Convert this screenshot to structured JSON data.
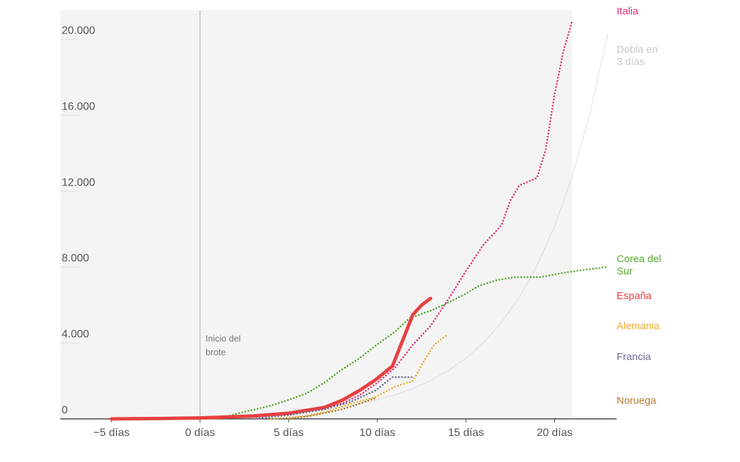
{
  "chart_data": {
    "type": "line",
    "annotation": "Inicio del brote",
    "xlim": [
      -8,
      23.5
    ],
    "ylim": [
      0,
      21500
    ],
    "xticks": [
      {
        "value": -5,
        "label": "−5 días"
      },
      {
        "value": 0,
        "label": "0 días"
      },
      {
        "value": 5,
        "label": "5 días"
      },
      {
        "value": 10,
        "label": "10 días"
      },
      {
        "value": 15,
        "label": "15 días"
      },
      {
        "value": 20,
        "label": "20 días"
      }
    ],
    "yticks": [
      0,
      {
        "value": 4000,
        "label": "4.000"
      },
      {
        "value": 8000,
        "label": "8.000"
      },
      {
        "value": 12000,
        "label": "12.000"
      },
      {
        "value": 16000,
        "label": "16.000"
      },
      {
        "value": 20000,
        "label": "20.000"
      }
    ],
    "grid": true,
    "series": [
      {
        "name": "Italia",
        "color": "#e0307a",
        "style": "dotted",
        "x": [
          0,
          3,
          6,
          8,
          9,
          10,
          11,
          12,
          13,
          14,
          15,
          16,
          17,
          17.5,
          18,
          19,
          19.5,
          20,
          20.5,
          21
        ],
        "values": [
          0,
          100,
          400,
          800,
          1250,
          1900,
          2700,
          3900,
          4900,
          6300,
          7800,
          9200,
          10200,
          11500,
          12300,
          12700,
          14200,
          17100,
          19400,
          21000
        ]
      },
      {
        "name": "Dobla en 3 días",
        "color": "#c8c8c8",
        "style": "thin",
        "x": [
          0,
          1,
          2,
          3,
          4,
          5,
          6,
          7,
          8,
          9,
          10,
          11,
          12,
          13,
          14,
          15,
          16,
          17,
          18,
          19,
          20,
          21,
          22,
          23
        ],
        "values": [
          100,
          126,
          159,
          200,
          252,
          317,
          400,
          504,
          635,
          800,
          1008,
          1270,
          1600,
          2016,
          2540,
          3200,
          4032,
          5080,
          6400,
          8063,
          10159,
          12800,
          16127,
          20319
        ]
      },
      {
        "name": "Corea del Sur",
        "color": "#5aa832",
        "style": "dotted",
        "x": [
          1,
          2.2,
          4,
          4.9,
          6,
          7,
          8,
          9,
          9.9,
          11,
          11.8,
          13,
          13.8,
          15,
          15.7,
          16.7,
          17.7,
          19.2,
          20.7,
          22.9
        ],
        "values": [
          0,
          300,
          700,
          975,
          1340,
          1900,
          2600,
          3200,
          3860,
          4600,
          5300,
          5700,
          6030,
          6600,
          7000,
          7300,
          7470,
          7470,
          7730,
          8000
        ]
      },
      {
        "name": "España",
        "color": "#e84040",
        "style": "solid",
        "x": [
          -5,
          -2,
          0,
          3,
          5,
          7,
          8,
          9,
          9.9,
          10.85,
          11.5,
          12,
          12.5,
          13
        ],
        "values": [
          0,
          20,
          50,
          150,
          300,
          600,
          975,
          1500,
          2060,
          2780,
          4300,
          5490,
          6000,
          6350
        ]
      },
      {
        "name": "Alemania",
        "color": "#e8b030",
        "style": "dotted",
        "x": [
          4,
          6,
          7.2,
          8.5,
          9.9,
          11,
          12,
          12.6,
          13.2,
          13.9
        ],
        "values": [
          0,
          150,
          400,
          800,
          1150,
          1700,
          2000,
          3000,
          3900,
          4400
        ]
      },
      {
        "name": "Francia",
        "color": "#6b6b90",
        "style": "dotted",
        "x": [
          3,
          5,
          7,
          8.5,
          9.9,
          10.85,
          11.5,
          12
        ],
        "values": [
          0,
          200,
          500,
          900,
          1500,
          2200,
          2200,
          2200
        ]
      },
      {
        "name": "Noruega",
        "color": "#b07a30",
        "style": "dotted",
        "x": [
          5,
          6.5,
          8,
          9,
          9.9
        ],
        "values": [
          0,
          200,
          500,
          800,
          1100
        ]
      }
    ]
  }
}
